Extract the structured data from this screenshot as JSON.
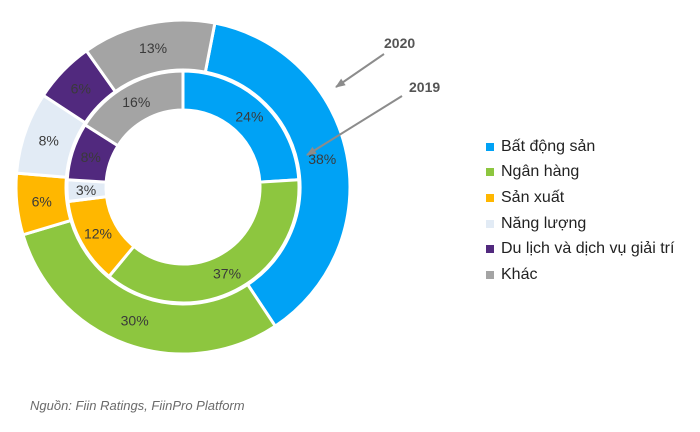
{
  "chart_data": {
    "type": "donut",
    "categories": [
      "Bất động sản",
      "Ngân hàng",
      "Sản xuất",
      "Năng lượng",
      "Du lịch và dịch vụ giải trí",
      "Khác"
    ],
    "colors": [
      "#00a2f5",
      "#8dc63f",
      "#ffb700",
      "#e2ebf5",
      "#51297e",
      "#a4a4a4"
    ],
    "series": [
      {
        "name": "2020",
        "ring": "outer",
        "values": [
          38,
          30,
          6,
          8,
          6,
          13
        ],
        "labels": [
          "38%",
          "30%",
          "6%",
          "8%",
          "6%",
          "13%"
        ]
      },
      {
        "name": "2019",
        "ring": "inner",
        "values": [
          24,
          37,
          12,
          3,
          8,
          16
        ],
        "labels": [
          "24%",
          "37%",
          "12%",
          "3%",
          "8%",
          "16%"
        ]
      }
    ],
    "legend_position": "right",
    "annotations": [
      "2020",
      "2019"
    ]
  },
  "source_note": "Nguồn: Fiin Ratings, FiinPro Platform"
}
